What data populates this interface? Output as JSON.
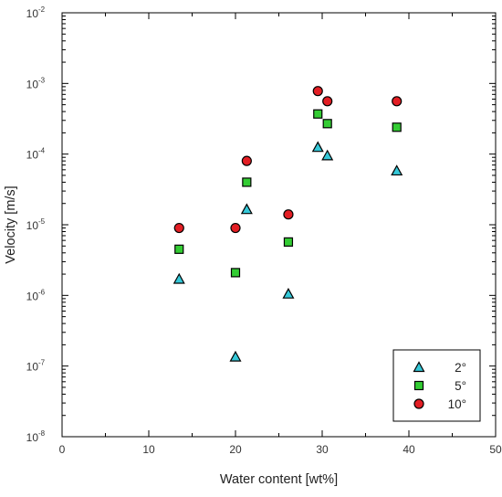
{
  "chart_data": {
    "type": "scatter",
    "xlabel": "Water content [wt%]",
    "ylabel": "Velocity [m/s]",
    "xlim": [
      0,
      50
    ],
    "ylim": [
      1e-08,
      0.01
    ],
    "y_scale": "log",
    "x_ticks": [
      "0",
      "10",
      "20",
      "30",
      "40",
      "50"
    ],
    "y_ticks": [
      {
        "base": "10",
        "exp": "-8"
      },
      {
        "base": "10",
        "exp": "-7"
      },
      {
        "base": "10",
        "exp": "-6"
      },
      {
        "base": "10",
        "exp": "-5"
      },
      {
        "base": "10",
        "exp": "-4"
      },
      {
        "base": "10",
        "exp": "-3"
      },
      {
        "base": "10",
        "exp": "-2"
      }
    ],
    "grid": false,
    "legend_position": "bottom-right",
    "series": [
      {
        "name": "2°",
        "marker": "triangle",
        "color": "#35c8d8",
        "x": [
          13.5,
          20.0,
          21.3,
          26.1,
          29.5,
          30.6,
          38.6
        ],
        "y": [
          1.7e-06,
          1.35e-07,
          1.65e-05,
          1.05e-06,
          0.000125,
          9.5e-05,
          5.8e-05
        ]
      },
      {
        "name": "5°",
        "marker": "square",
        "color": "#33cc33",
        "x": [
          13.5,
          20.0,
          21.3,
          26.1,
          29.5,
          30.6,
          38.6
        ],
        "y": [
          4.5e-06,
          2.1e-06,
          4e-05,
          5.7e-06,
          0.00037,
          0.00027,
          0.00024
        ]
      },
      {
        "name": "10°",
        "marker": "circle",
        "color": "#e31e24",
        "x": [
          13.5,
          20.0,
          21.3,
          26.1,
          29.5,
          30.6,
          38.6
        ],
        "y": [
          9e-06,
          9e-06,
          8e-05,
          1.4e-05,
          0.00078,
          0.00056,
          0.00056
        ]
      }
    ]
  }
}
